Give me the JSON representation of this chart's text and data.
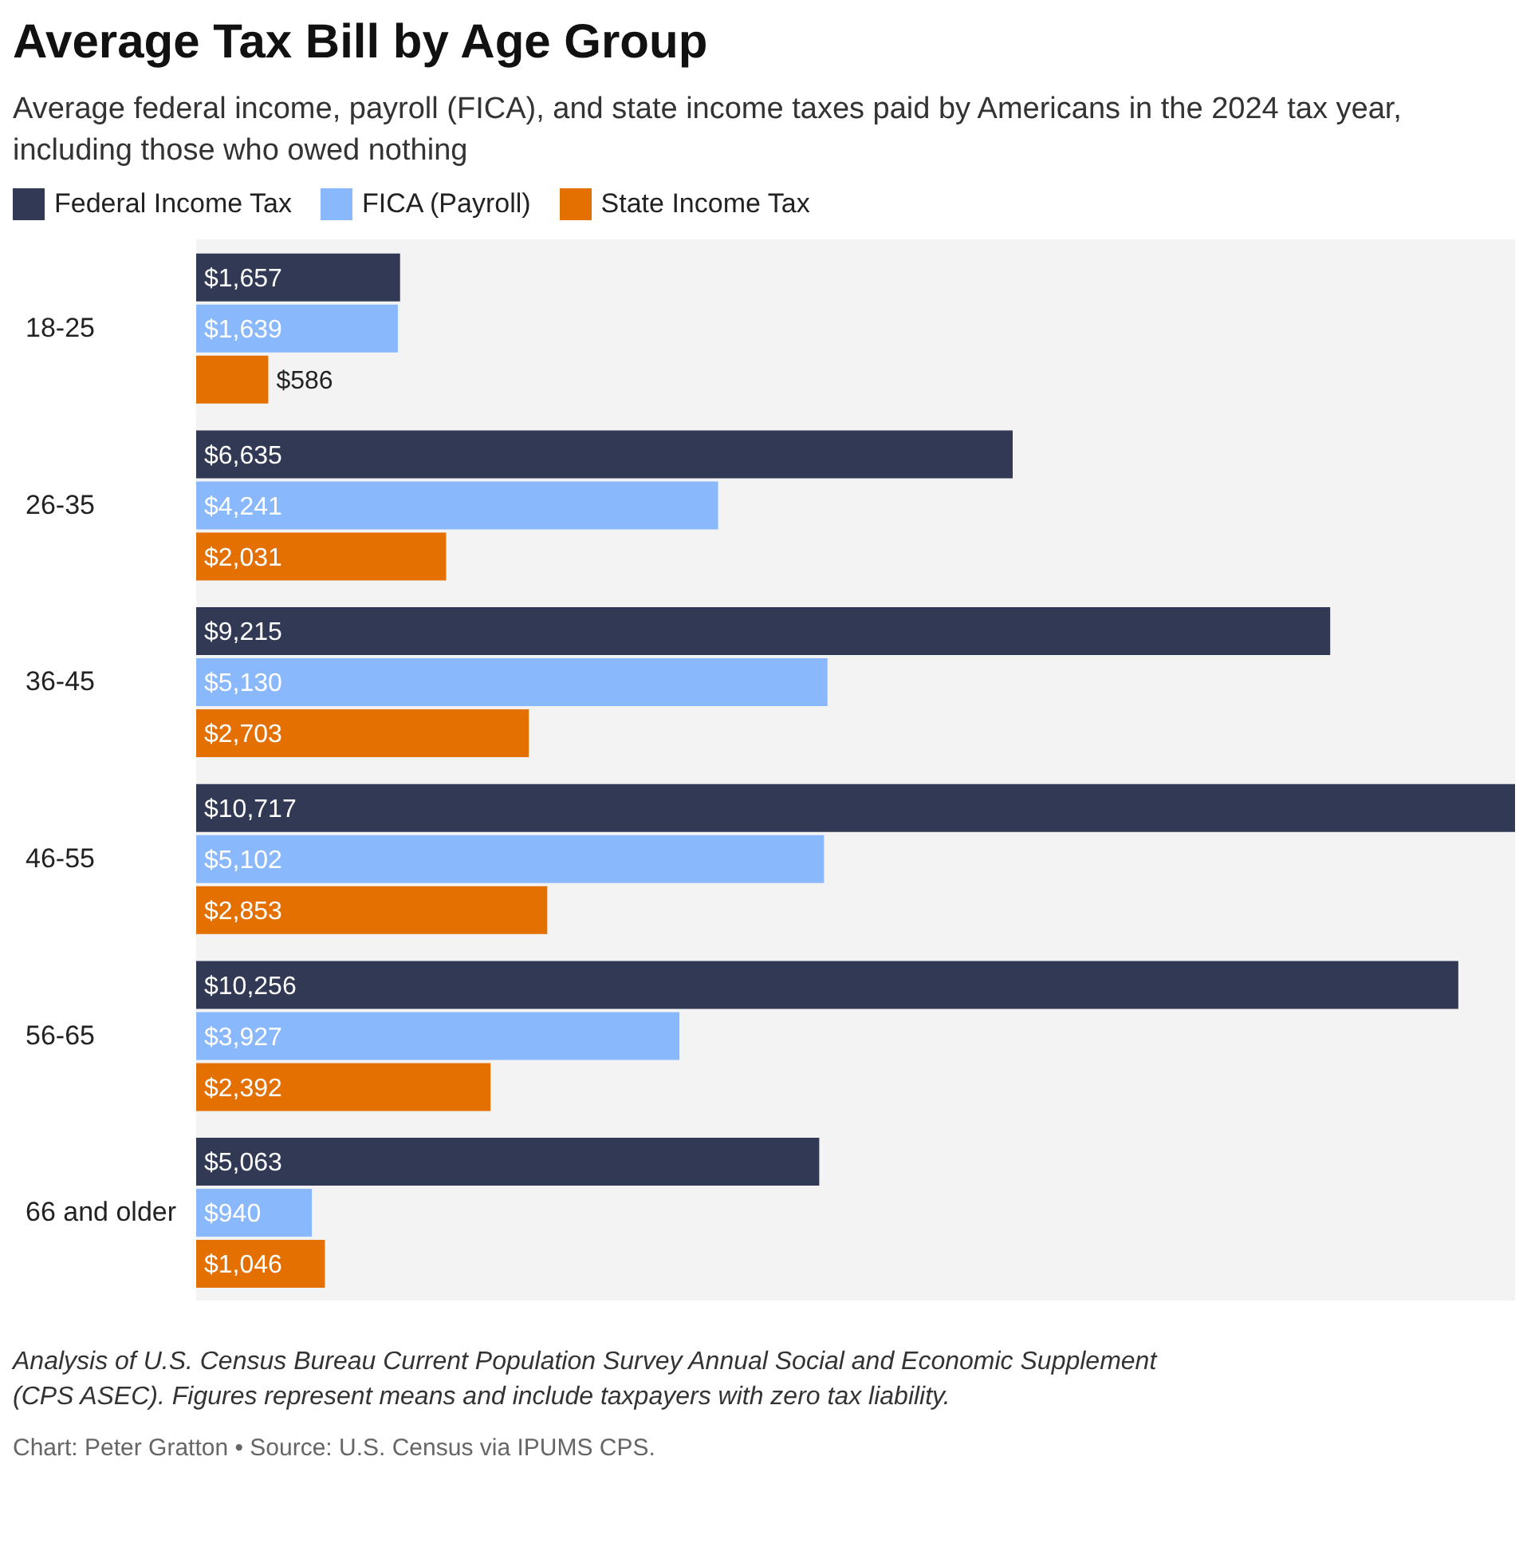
{
  "chart_data": {
    "type": "bar",
    "orientation": "horizontal",
    "title": "Average Tax Bill by Age Group",
    "subtitle": "Average federal income, payroll (FICA), and state income taxes paid by Americans in the 2024 tax year, including those who owed nothing",
    "categories": [
      "18-25",
      "26-35",
      "36-45",
      "46-55",
      "56-65",
      "66 and older"
    ],
    "series": [
      {
        "name": "Federal Income Tax",
        "color": "#313955",
        "values": [
          1657,
          6635,
          9215,
          10717,
          10256,
          5063
        ],
        "value_labels": [
          "$1,657",
          "$6,635",
          "$9,215",
          "$10,717",
          "$10,256",
          "$5,063"
        ]
      },
      {
        "name": "FICA (Payroll)",
        "color": "#8ab8fc",
        "values": [
          1639,
          4241,
          5130,
          5102,
          3927,
          940
        ],
        "value_labels": [
          "$1,639",
          "$4,241",
          "$5,130",
          "$5,102",
          "$3,927",
          "$940"
        ]
      },
      {
        "name": "State Income Tax",
        "color": "#e37000",
        "values": [
          586,
          2031,
          2703,
          2853,
          2392,
          1046
        ],
        "value_labels": [
          "$586",
          "$2,031",
          "$2,703",
          "$2,853",
          "$2,392",
          "$1,046"
        ]
      }
    ],
    "legend": "top left",
    "tick_labels": "y",
    "annotations": [
      "Analysis of U.S. Census Bureau Current Population Survey Annual Social and Economic Supplement (CPS ASEC). Figures represent means and include taxpayers with zero tax liability.",
      "Chart: Peter Gratton • Source: U.S. Census via IPUMS CPS."
    ]
  }
}
